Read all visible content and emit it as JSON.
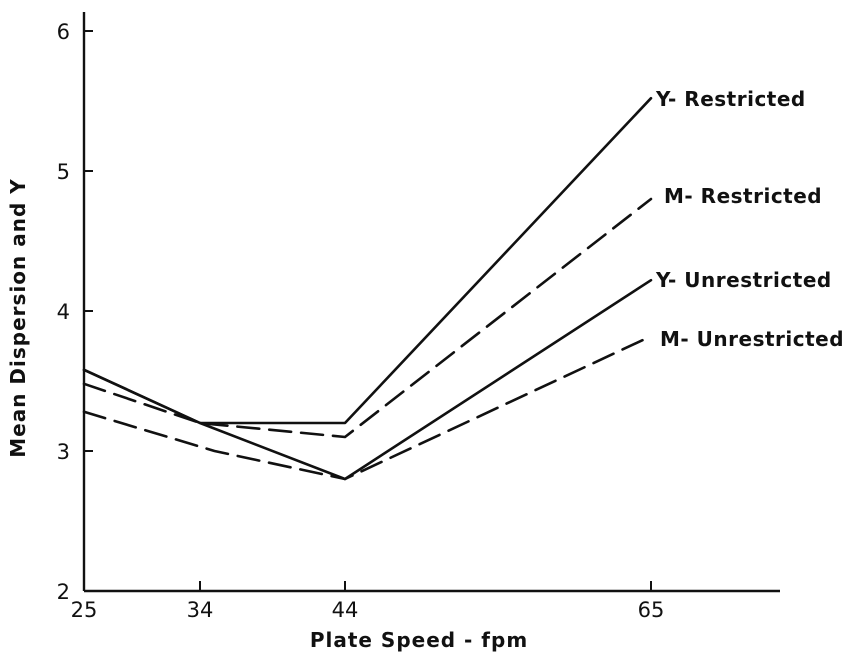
{
  "chart_data": {
    "type": "line",
    "title": "",
    "xlabel": "Plate Speed - fpm",
    "ylabel": "Mean Dispersion and Y",
    "x_ticks": [
      25,
      34,
      44,
      65
    ],
    "y_ticks": [
      2,
      3,
      4,
      5,
      6
    ],
    "xlim": [
      25,
      80
    ],
    "ylim": [
      2,
      6.2
    ],
    "grid": false,
    "legend": "none",
    "series": [
      {
        "name": "Y- Restricted",
        "style": "solid",
        "points": [
          [
            25,
            3.58
          ],
          [
            34,
            3.2
          ],
          [
            44,
            3.2
          ],
          [
            65,
            5.52
          ]
        ]
      },
      {
        "name": "M- Restricted",
        "style": "dashed",
        "points": [
          [
            25,
            3.48
          ],
          [
            34,
            3.2
          ],
          [
            44,
            3.1
          ],
          [
            65,
            4.8
          ]
        ]
      },
      {
        "name": "Y- Unrestricted",
        "style": "solid",
        "points": [
          [
            25,
            3.58
          ],
          [
            34,
            3.2
          ],
          [
            44,
            2.8
          ],
          [
            65,
            4.22
          ]
        ]
      },
      {
        "name": "M- Unrestricted",
        "style": "dashed",
        "points": [
          [
            25,
            3.28
          ],
          [
            35,
            3.0
          ],
          [
            44,
            2.8
          ],
          [
            65,
            3.82
          ]
        ]
      }
    ]
  }
}
